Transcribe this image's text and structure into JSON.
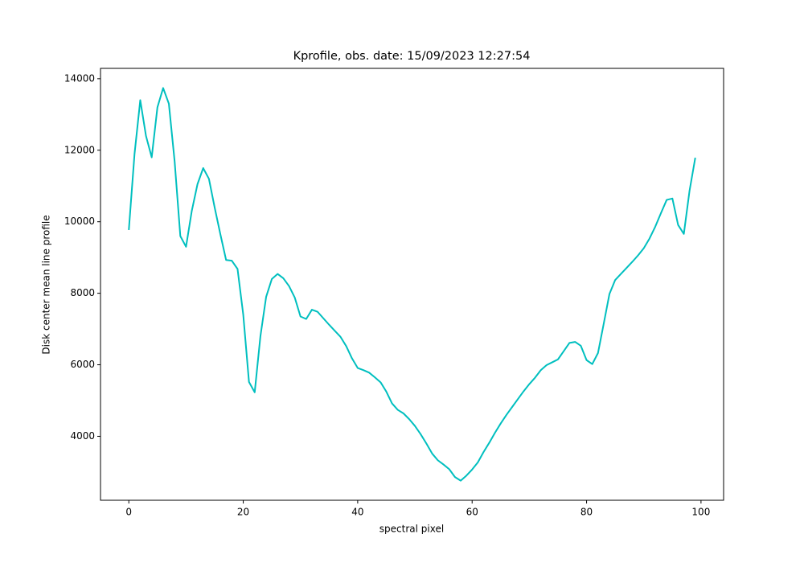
{
  "chart_data": {
    "type": "line",
    "title": "Kprofile, obs. date: 15/09/2023 12:27:54",
    "x_label": "spectral pixel",
    "y_label": "Disk center mean line profile",
    "x": [
      0,
      1,
      2,
      3,
      4,
      5,
      6,
      7,
      8,
      9,
      10,
      11,
      12,
      13,
      14,
      15,
      16,
      17,
      18,
      19,
      20,
      21,
      22,
      23,
      24,
      25,
      26,
      27,
      28,
      29,
      30,
      31,
      32,
      33,
      34,
      35,
      36,
      37,
      38,
      39,
      40,
      41,
      42,
      43,
      44,
      45,
      46,
      47,
      48,
      49,
      50,
      51,
      52,
      53,
      54,
      55,
      56,
      57,
      58,
      59,
      60,
      61,
      62,
      63,
      64,
      65,
      66,
      67,
      68,
      69,
      70,
      71,
      72,
      73,
      74,
      75,
      76,
      77,
      78,
      79,
      80,
      81,
      82,
      83,
      84,
      85,
      86,
      87,
      88,
      89,
      90,
      91,
      92,
      93,
      94,
      95,
      96,
      97,
      98,
      99
    ],
    "values": [
      9770,
      11900,
      13400,
      12400,
      11800,
      13200,
      13740,
      13300,
      11700,
      9600,
      9300,
      10300,
      11050,
      11500,
      11200,
      10400,
      9650,
      8930,
      8910,
      8680,
      7400,
      5520,
      5230,
      6800,
      7900,
      8400,
      8540,
      8420,
      8200,
      7880,
      7350,
      7280,
      7540,
      7480,
      7300,
      7120,
      6950,
      6780,
      6520,
      6180,
      5910,
      5850,
      5780,
      5650,
      5510,
      5250,
      4920,
      4740,
      4640,
      4480,
      4290,
      4060,
      3800,
      3520,
      3330,
      3210,
      3080,
      2860,
      2760,
      2900,
      3070,
      3270,
      3560,
      3820,
      4100,
      4360,
      4600,
      4820,
      5040,
      5260,
      5460,
      5640,
      5850,
      5990,
      6070,
      6150,
      6380,
      6610,
      6640,
      6530,
      6130,
      6020,
      6330,
      7150,
      7980,
      8370,
      8540,
      8710,
      8880,
      9060,
      9260,
      9530,
      9860,
      10240,
      10610,
      10650,
      9910,
      9660,
      10870,
      11790
    ],
    "color": "#00bfbf",
    "xlim": [
      -4.95,
      103.95
    ],
    "xticks": [
      0,
      20,
      40,
      60,
      80,
      100
    ],
    "ylim": [
      2211,
      14289
    ],
    "yticks": [
      4000,
      6000,
      8000,
      10000,
      12000,
      14000
    ]
  }
}
